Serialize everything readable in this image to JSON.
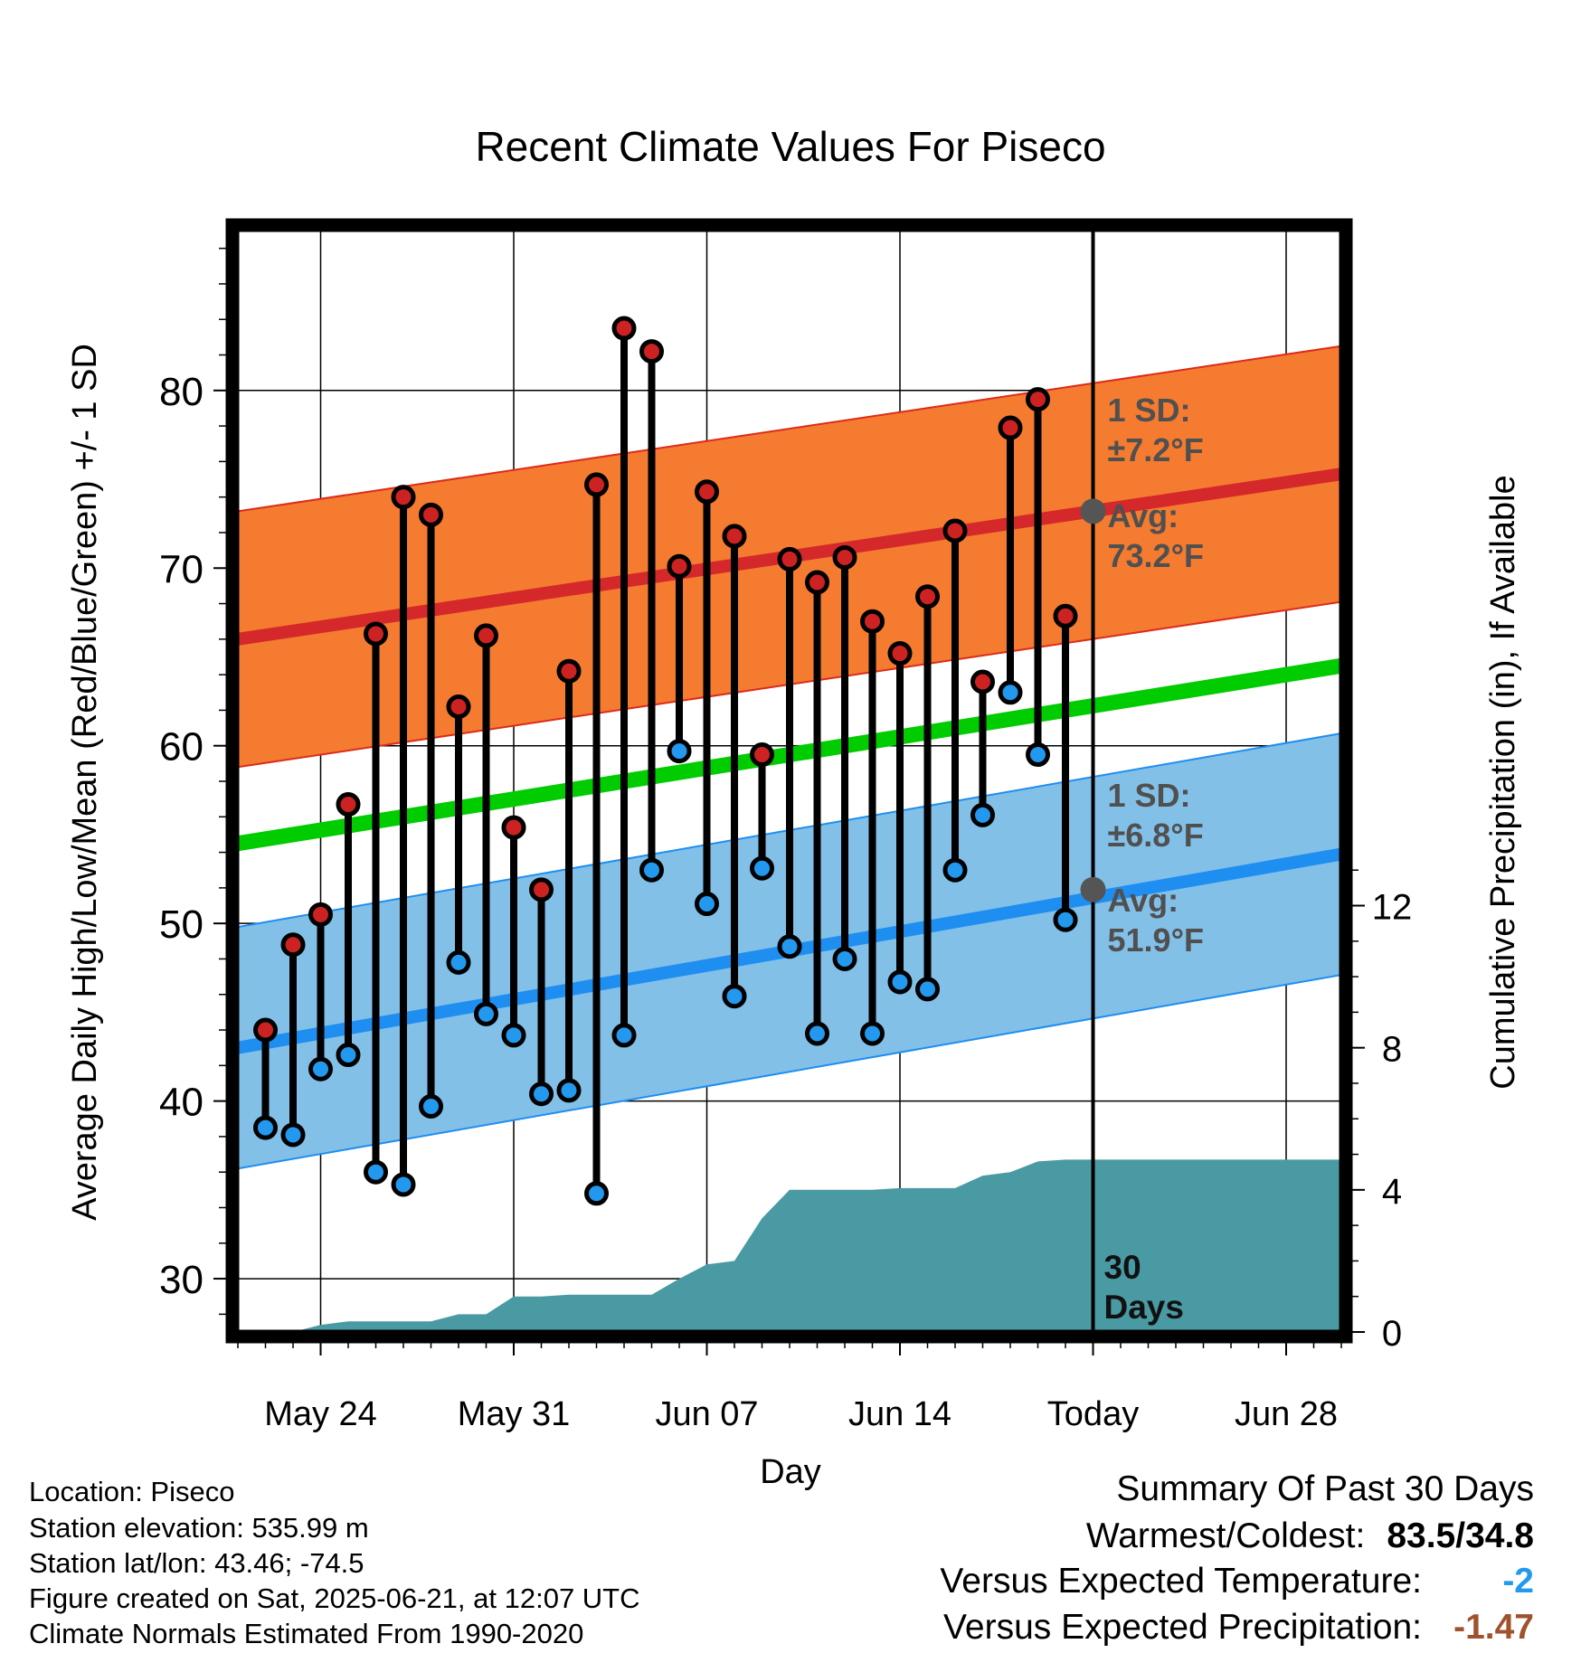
{
  "chart_data": {
    "type": "range",
    "title": "Recent Climate Values For Piseco",
    "xlabel": "Day",
    "ylabel": "Average Daily High/Low/Mean (Red/Blue/Green) +/- 1 SD",
    "y2label": "Cumulative Precipitation (in), If Available",
    "x_start": "May 21",
    "x_end": "Jul 01",
    "ylim": [
      27,
      89
    ],
    "y2lim": [
      0,
      31
    ],
    "grid": true,
    "x_ticks": [
      {
        "day": 3,
        "label": "May 24"
      },
      {
        "day": 10,
        "label": "May 31"
      },
      {
        "day": 17,
        "label": "Jun 07"
      },
      {
        "day": 24,
        "label": "Jun 14"
      },
      {
        "day": 31,
        "label": "Today"
      },
      {
        "day": 38,
        "label": "Jun 28"
      }
    ],
    "y_ticks": [
      30,
      40,
      50,
      60,
      70,
      80
    ],
    "y2_ticks": [
      0,
      4,
      8,
      12
    ],
    "series": [
      {
        "name": "High",
        "color": "#cc2222",
        "values": [
          44.0,
          48.8,
          50.5,
          56.7,
          66.3,
          74.0,
          73.0,
          62.2,
          66.2,
          55.4,
          51.9,
          64.2,
          74.7,
          83.5,
          82.2,
          70.1,
          74.3,
          71.8,
          59.5,
          70.5,
          69.2,
          70.6,
          67.0,
          65.2,
          68.4,
          72.1,
          63.6,
          77.9,
          79.5,
          67.3
        ]
      },
      {
        "name": "Low",
        "color": "#2299ee",
        "values": [
          38.5,
          38.1,
          41.8,
          42.6,
          36.0,
          35.3,
          39.7,
          47.8,
          44.9,
          43.7,
          40.4,
          40.6,
          34.8,
          43.7,
          53.0,
          59.7,
          51.1,
          45.9,
          53.1,
          48.7,
          43.8,
          48.0,
          43.8,
          46.7,
          46.3,
          53.0,
          56.1,
          63.0,
          59.5,
          50.2
        ]
      }
    ],
    "normals": {
      "high_avg": [
        66.0,
        75.3
      ],
      "high_sd": 7.2,
      "low_avg": [
        43.0,
        53.9
      ],
      "low_sd": 6.8,
      "mean_avg": [
        54.5,
        64.5
      ]
    },
    "precip_cumulative": {
      "days": [
        0,
        2,
        3,
        4,
        6,
        7,
        8,
        9,
        10,
        11,
        12,
        13,
        14,
        15,
        16,
        17,
        18,
        19,
        20,
        21,
        23,
        24,
        26,
        27,
        28,
        29,
        30,
        31,
        32,
        33,
        34,
        35,
        36,
        37,
        38,
        39,
        40
      ],
      "values": [
        0,
        0,
        0.2,
        0.3,
        0.3,
        0.3,
        0.5,
        0.5,
        1.0,
        1.0,
        1.05,
        1.05,
        1.05,
        1.05,
        1.5,
        1.9,
        2.0,
        3.2,
        4.0,
        4.0,
        4.0,
        4.05,
        4.05,
        4.4,
        4.5,
        4.8,
        4.85,
        4.85,
        4.85,
        4.85,
        4.85,
        4.85,
        4.85,
        4.85,
        4.85,
        4.85,
        4.85
      ]
    },
    "annotations": {
      "high_sd_label": "1 SD:",
      "high_sd_value": "±7.2°F",
      "high_avg_label": "Avg:",
      "high_avg_value": "73.2°F",
      "high_avg_point": 73.2,
      "low_sd_label": "1 SD:",
      "low_sd_value": "±6.8°F",
      "low_avg_label": "Avg:",
      "low_avg_value": "51.9°F",
      "low_avg_point": 51.9,
      "window_label_1": "30",
      "window_label_2": "Days"
    }
  },
  "info": {
    "location": "Location: Piseco",
    "elevation": "Station elevation: 535.99 m",
    "latlon": "Station lat/lon: 43.46; -74.5",
    "created": "Figure created on Sat, 2025-06-21, at 12:07 UTC",
    "normals": "Climate Normals Estimated From 1990-2020"
  },
  "summary": {
    "heading": "Summary Of Past 30 Days",
    "warm_cold_label": "Warmest/Coldest:",
    "warm_cold_value": "83.5/34.8",
    "temp_label": "Versus Expected Temperature:",
    "temp_value": "-2",
    "temp_color": "#2299ee",
    "precip_label": "Versus Expected Precipitation:",
    "precip_value": "-1.47",
    "precip_color": "#a0522d"
  }
}
